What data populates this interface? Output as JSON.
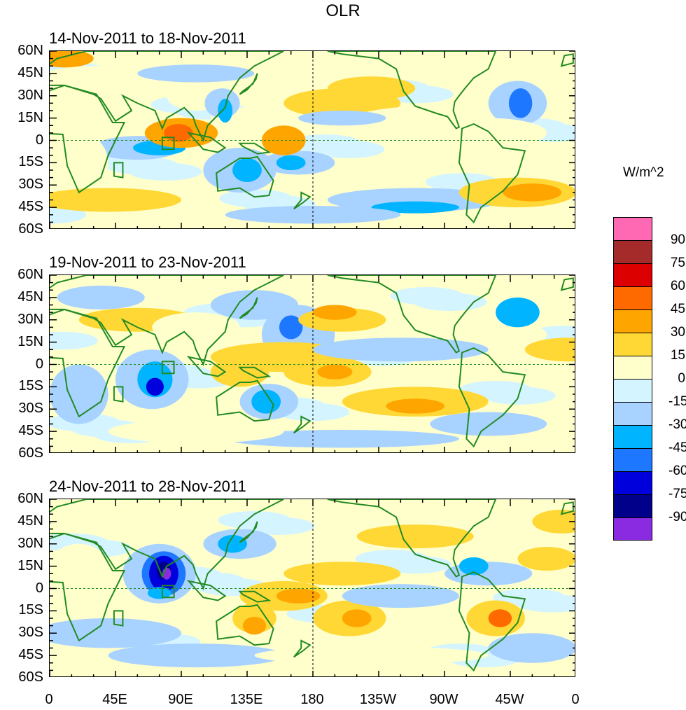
{
  "title": "OLR",
  "panels": [
    {
      "label": "14-Nov-2011 to 18-Nov-2011"
    },
    {
      "label": "19-Nov-2011 to 23-Nov-2011"
    },
    {
      "label": "24-Nov-2011 to 28-Nov-2011"
    }
  ],
  "y_ticks": [
    "60N",
    "45N",
    "30N",
    "15N",
    "0",
    "15S",
    "30S",
    "45S",
    "60S"
  ],
  "x_ticks": [
    "0",
    "45E",
    "90E",
    "135E",
    "180",
    "135W",
    "90W",
    "45W",
    "0"
  ],
  "colorbar": {
    "title": "W/m^2",
    "labels": [
      "90",
      "75",
      "60",
      "45",
      "30",
      "15",
      "0",
      "-15",
      "-30",
      "-45",
      "-60",
      "-75",
      "-90"
    ],
    "colors": [
      "#ff69b4",
      "#a52a2a",
      "#dd0000",
      "#ff6a00",
      "#ffa500",
      "#ffd835",
      "#ffffcc",
      "#d4f4ff",
      "#a8d2ff",
      "#00b4ff",
      "#1e78ff",
      "#0000dd",
      "#00008b",
      "#8a2be2"
    ]
  },
  "coastline_color": "#228b22"
}
